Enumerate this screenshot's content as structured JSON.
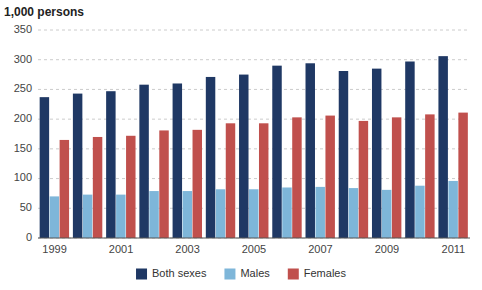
{
  "chart_data": {
    "type": "bar",
    "y_label": "1,000 persons",
    "categories": [
      "1999",
      null,
      "2001",
      null,
      "2003",
      null,
      "2005",
      null,
      "2007",
      null,
      "2009",
      null,
      "2011"
    ],
    "series": [
      {
        "name": "Both sexes",
        "color": "#1F3864",
        "values": [
          237,
          243,
          247,
          258,
          260,
          271,
          275,
          290,
          294,
          281,
          285,
          297,
          306
        ]
      },
      {
        "name": "Males",
        "color": "#7EB6D9",
        "values": [
          70,
          73,
          73,
          79,
          79,
          82,
          82,
          85,
          86,
          84,
          81,
          88,
          96
        ]
      },
      {
        "name": "Females",
        "color": "#C0504D",
        "values": [
          165,
          170,
          172,
          181,
          182,
          193,
          193,
          203,
          206,
          197,
          203,
          208,
          211
        ]
      }
    ],
    "ylim": [
      0,
      350
    ],
    "yticks": [
      0,
      50,
      100,
      150,
      200,
      250,
      300,
      350
    ],
    "grid": true,
    "legend": "bottom"
  }
}
